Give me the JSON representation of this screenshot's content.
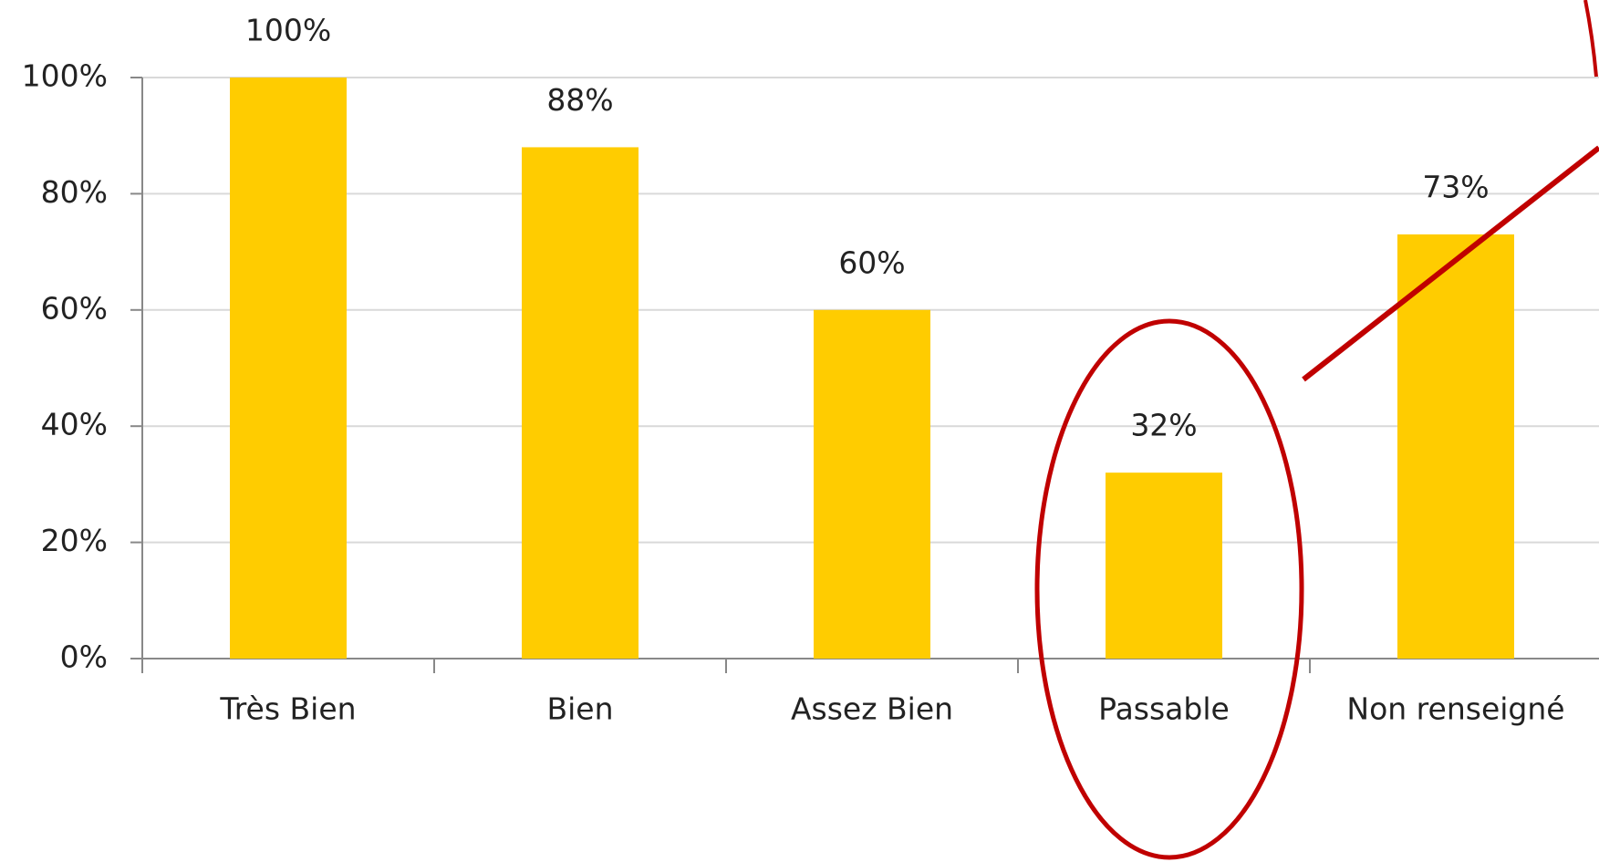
{
  "chart_data": {
    "type": "bar",
    "categories": [
      "Très Bien",
      "Bien",
      "Assez Bien",
      "Passable",
      "Non renseigné"
    ],
    "values": [
      100,
      88,
      60,
      32,
      73
    ],
    "value_labels": [
      "100%",
      "88%",
      "60%",
      "32%",
      "73%"
    ],
    "color": "#ffcc00",
    "ylim": [
      0,
      100
    ],
    "yticks": [
      {
        "value": 0,
        "label": "0%"
      },
      {
        "value": 20,
        "label": "20%"
      },
      {
        "value": 40,
        "label": "40%"
      },
      {
        "value": 60,
        "label": "60%"
      },
      {
        "value": 80,
        "label": "80%"
      },
      {
        "value": 100,
        "label": "100%"
      }
    ],
    "grid": true
  }
}
